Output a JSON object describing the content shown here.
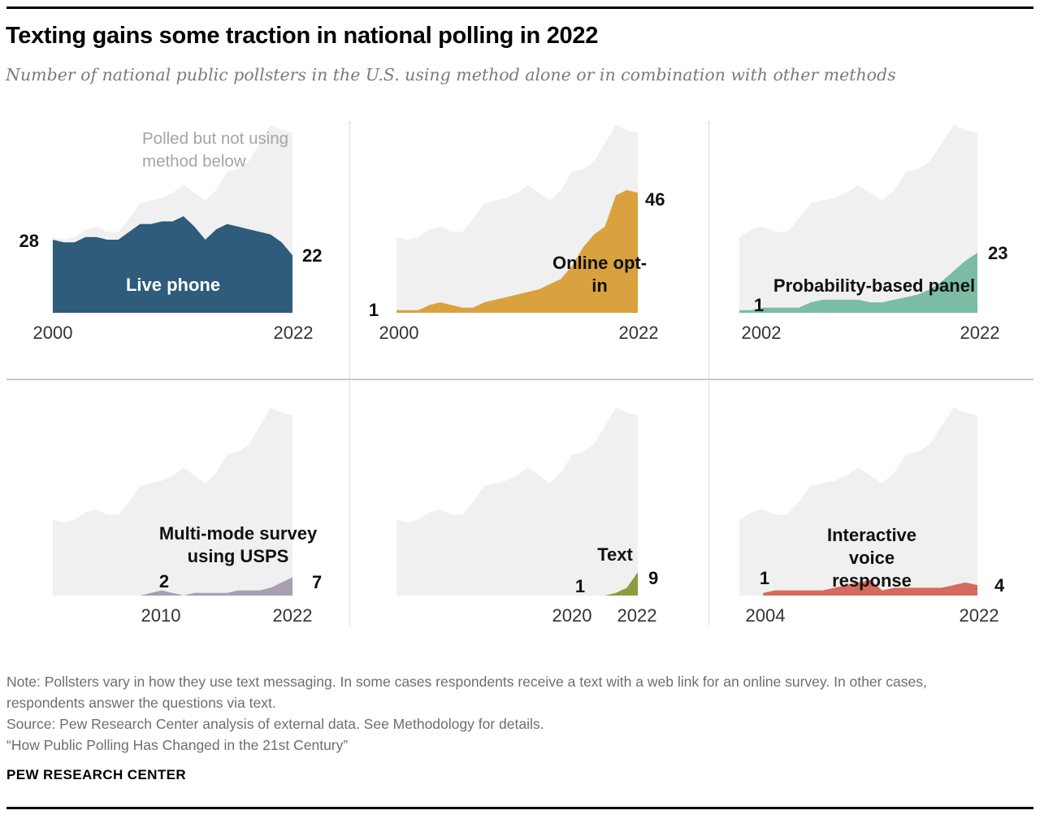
{
  "header": {
    "title": "Texting gains some traction in national polling in 2022",
    "subtitle": "Number of national public pollsters in the U.S. using method alone or in combination with other methods"
  },
  "chart_data": {
    "type": "area",
    "title": "Texting gains some traction in national polling in 2022",
    "subtitle": "Number of national public pollsters in the U.S. using method alone or in combination with other methods",
    "layout": "six small multiples, shared gray total area behind each colored series",
    "end_year": 2022,
    "ylim": [
      0,
      75
    ],
    "total_series": {
      "label": "Polled but not using method below",
      "color": "#F0F0F0",
      "start_year": 2000,
      "values": [
        29,
        28,
        29,
        32,
        33,
        31,
        31,
        36,
        42,
        43,
        44,
        46,
        49,
        46,
        43,
        47,
        54,
        55,
        58,
        65,
        72,
        70,
        69
      ]
    },
    "panels": [
      {
        "method": "Live phone",
        "color": "#2E5C7A",
        "axis_start_year": 2000,
        "series_start_year": 2000,
        "values": [
          28,
          27,
          27,
          29,
          29,
          28,
          28,
          31,
          34,
          34,
          35,
          35,
          37,
          33,
          28,
          32,
          34,
          33,
          32,
          31,
          30,
          27,
          22
        ],
        "start_label": "28",
        "end_label": "22",
        "x_ticks": [
          "2000",
          "2022"
        ]
      },
      {
        "method": "Online opt-in",
        "color": "#D9A23F",
        "axis_start_year": 2000,
        "series_start_year": 2000,
        "values": [
          1,
          1,
          1,
          3,
          4,
          3,
          2,
          2,
          4,
          5,
          6,
          7,
          8,
          9,
          11,
          13,
          18,
          25,
          30,
          33,
          45,
          47,
          46
        ],
        "start_label": "1",
        "end_label": "46",
        "x_ticks": [
          "2000",
          "2022"
        ]
      },
      {
        "method": "Probability-based panel",
        "color": "#7CBCA5",
        "axis_start_year": 2002,
        "series_start_year": 2002,
        "values": [
          1,
          1,
          2,
          2,
          2,
          2,
          4,
          5,
          5,
          5,
          5,
          4,
          4,
          5,
          6,
          7,
          9,
          12,
          16,
          20,
          23
        ],
        "start_label": "1",
        "end_label": "23",
        "x_ticks": [
          "2002",
          "2022"
        ]
      },
      {
        "method": "Multi-mode survey using USPS",
        "color": "#A89FB3",
        "axis_start_year": 2000,
        "series_start_year": 2008,
        "values": [
          0,
          1,
          2,
          1,
          0,
          1,
          1,
          1,
          1,
          2,
          2,
          2,
          3,
          5,
          7
        ],
        "start_label": "2",
        "end_label": "7",
        "x_ticks": [
          "2010",
          "2022"
        ]
      },
      {
        "method": "Text",
        "color": "#8A9E3C",
        "axis_start_year": 2000,
        "series_start_year": 2018,
        "values": [
          0,
          0,
          1,
          3,
          9
        ],
        "start_label": "1",
        "end_label": "9",
        "x_ticks": [
          "2020",
          "2022"
        ]
      },
      {
        "method": "Interactive voice response",
        "color": "#D56B5E",
        "axis_start_year": 2002,
        "series_start_year": 2004,
        "values": [
          1,
          2,
          2,
          2,
          2,
          2,
          3,
          4,
          5,
          6,
          2,
          3,
          3,
          3,
          3,
          3,
          4,
          5,
          4
        ],
        "start_label": "1",
        "end_label": "4",
        "x_ticks": [
          "2004",
          "2022"
        ]
      }
    ]
  },
  "footer": {
    "note": "Note: Pollsters vary in how they use text messaging. In some cases respondents receive a text with a web link for an online survey. In other cases, respondents answer the questions via text.",
    "source": "Source: Pew Research Center analysis of external data. See Methodology for details.",
    "quote": "“How Public Polling Has Changed in the 21st Century”",
    "brand": "PEW RESEARCH CENTER"
  }
}
